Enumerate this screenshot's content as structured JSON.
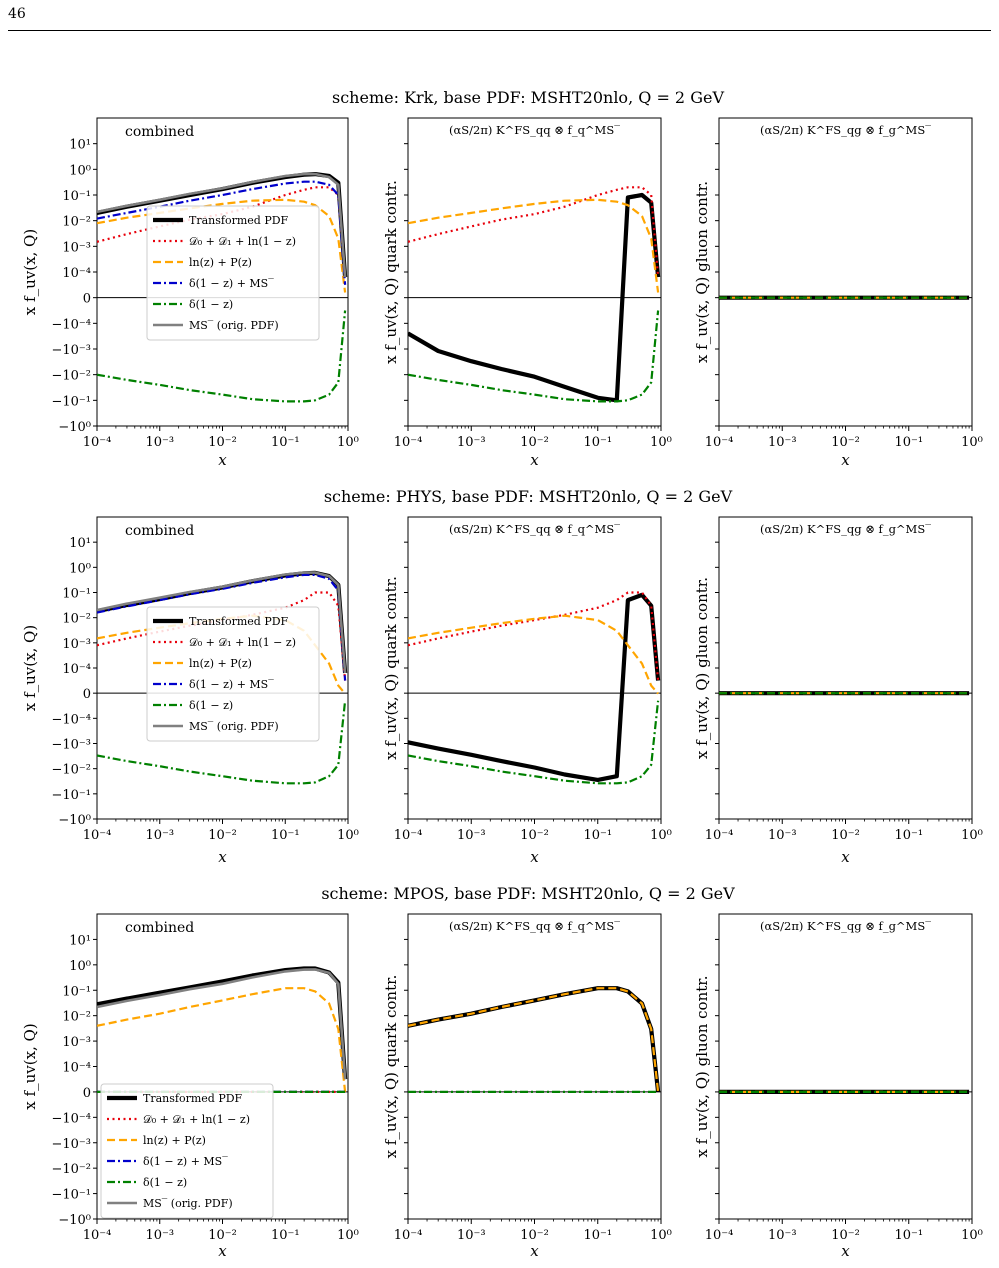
{
  "page": {
    "number": "46"
  },
  "legend_entries": [
    {
      "name": "Transformed PDF",
      "color": "#000000",
      "style": "solid-thick"
    },
    {
      "name": "𝒟₀ + 𝒟₁ + ln(1 − z)",
      "color": "#e8000b",
      "style": "dotted"
    },
    {
      "name": "ln(z) + P(z)",
      "color": "#ffa500",
      "style": "dashed"
    },
    {
      "name": "δ(1 − z) + MS‾",
      "color": "#0000cc",
      "style": "dashdot"
    },
    {
      "name": "δ(1 − z)",
      "color": "#008000",
      "style": "dashdot"
    },
    {
      "name": "MS‾ (orig. PDF)",
      "color": "#808080",
      "style": "solid"
    }
  ],
  "axes_text": {
    "xlabel": "x",
    "ylabel_combined": "x f_uv(x, Q)",
    "ylabel_quark": "x f_uv(x, Q) quark contr.",
    "ylabel_gluon": "x f_uv(x, Q) gluon contr.",
    "x_ticks": [
      "10⁻⁴",
      "10⁻³",
      "10⁻²",
      "10⁻¹",
      "10⁰"
    ],
    "y_ticks": [
      "10¹",
      "10⁰",
      "10⁻¹",
      "10⁻²",
      "10⁻³",
      "10⁻⁴",
      "0",
      "−10⁻⁴",
      "−10⁻³",
      "−10⁻²",
      "−10⁻¹",
      "−10⁰"
    ],
    "panel_title_combined": "combined",
    "panel_title_quark": "(αS/2π) K^FS_qq ⊗ f_q^MS‾",
    "panel_title_gluon": "(αS/2π) K^FS_qg ⊗ f_g^MS‾"
  },
  "chart_data": [
    {
      "type": "line",
      "title": "scheme: Krk, base PDF: MSHT20nlo, Q = 2 GeV",
      "y_scale": "symlog",
      "ylim": [
        -1,
        10
      ],
      "xlim": [
        0.0001,
        1
      ],
      "x_scale": "log",
      "x": [
        0.0001,
        0.0003,
        0.001,
        0.003,
        0.01,
        0.03,
        0.1,
        0.2,
        0.3,
        0.5,
        0.7,
        0.9
      ],
      "panels": [
        {
          "panel": "combined",
          "legend_position": "center-left",
          "series": [
            {
              "name": "Transformed PDF",
              "values": [
                0.02,
                0.035,
                0.06,
                0.1,
                0.17,
                0.3,
                0.5,
                0.62,
                0.65,
                0.55,
                0.3,
                8e-05
              ]
            },
            {
              "name": "𝒟₀ + 𝒟₁ + ln(1 − z)",
              "values": [
                0.0015,
                0.003,
                0.006,
                0.011,
                0.018,
                0.035,
                0.1,
                0.16,
                0.2,
                0.2,
                0.1,
                8e-05
              ]
            },
            {
              "name": "ln(z) + P(z)",
              "values": [
                0.008,
                0.013,
                0.02,
                0.03,
                0.045,
                0.06,
                0.065,
                0.055,
                0.04,
                0.015,
                0.002,
                2e-05
              ]
            },
            {
              "name": "δ(1 − z) + MS‾",
              "values": [
                0.012,
                0.02,
                0.035,
                0.06,
                0.1,
                0.17,
                0.28,
                0.33,
                0.33,
                0.25,
                0.1,
                5e-05
              ]
            },
            {
              "name": "δ(1 − z)",
              "values": [
                -0.01,
                -0.016,
                -0.025,
                -0.04,
                -0.06,
                -0.09,
                -0.11,
                -0.11,
                -0.1,
                -0.06,
                -0.02,
                -5e-05
              ]
            },
            {
              "name": "MS‾ (orig. PDF)",
              "values": [
                0.022,
                0.038,
                0.065,
                0.11,
                0.18,
                0.32,
                0.55,
                0.65,
                0.66,
                0.5,
                0.25,
                8e-05
              ]
            }
          ]
        },
        {
          "panel": "quark",
          "series": [
            {
              "name": "Transformed PDF",
              "values": [
                -0.00025,
                -0.0012,
                -0.003,
                -0.006,
                -0.012,
                -0.03,
                -0.08,
                -0.1,
                0.08,
                0.1,
                0.05,
                8e-05
              ]
            },
            {
              "name": "𝒟₀ + 𝒟₁ + ln(1 − z)",
              "values": [
                0.0015,
                0.003,
                0.006,
                0.011,
                0.018,
                0.035,
                0.1,
                0.16,
                0.2,
                0.2,
                0.1,
                8e-05
              ]
            },
            {
              "name": "ln(z) + P(z)",
              "values": [
                0.008,
                0.013,
                0.02,
                0.03,
                0.045,
                0.06,
                0.065,
                0.055,
                0.04,
                0.015,
                0.002,
                2e-05
              ]
            },
            {
              "name": "δ(1 − z)",
              "values": [
                -0.01,
                -0.016,
                -0.025,
                -0.04,
                -0.06,
                -0.09,
                -0.11,
                -0.11,
                -0.1,
                -0.06,
                -0.02,
                -5e-05
              ]
            }
          ]
        },
        {
          "panel": "gluon",
          "series": [
            {
              "name": "Transformed PDF",
              "values": [
                0,
                0,
                0,
                0,
                0,
                0,
                0,
                0,
                0,
                0,
                0,
                0
              ]
            },
            {
              "name": "ln(z) + P(z)",
              "values": [
                0,
                0,
                0,
                0,
                0,
                0,
                0,
                0,
                0,
                0,
                0,
                0
              ]
            },
            {
              "name": "δ(1 − z)",
              "values": [
                0,
                0,
                0,
                0,
                0,
                0,
                0,
                0,
                0,
                0,
                0,
                0
              ]
            }
          ]
        }
      ]
    },
    {
      "type": "line",
      "title": "scheme: PHYS, base PDF: MSHT20nlo, Q = 2 GeV",
      "y_scale": "symlog",
      "ylim": [
        -1,
        10
      ],
      "xlim": [
        0.0001,
        1
      ],
      "x_scale": "log",
      "x": [
        0.0001,
        0.0003,
        0.001,
        0.003,
        0.01,
        0.03,
        0.1,
        0.2,
        0.3,
        0.5,
        0.7,
        0.9
      ],
      "panels": [
        {
          "panel": "combined",
          "legend_position": "center",
          "series": [
            {
              "name": "Transformed PDF",
              "values": [
                0.018,
                0.032,
                0.055,
                0.095,
                0.16,
                0.28,
                0.48,
                0.58,
                0.6,
                0.45,
                0.2,
                8e-05
              ]
            },
            {
              "name": "𝒟₀ + 𝒟₁ + ln(1 − z)",
              "values": [
                0.0008,
                0.0015,
                0.0028,
                0.0048,
                0.008,
                0.013,
                0.025,
                0.05,
                0.1,
                0.1,
                0.03,
                5e-05
              ]
            },
            {
              "name": "ln(z) + P(z)",
              "values": [
                0.0015,
                0.0025,
                0.004,
                0.006,
                0.009,
                0.012,
                0.008,
                0.003,
                0.0008,
                0.00015,
                3e-05,
                -2e-06
              ]
            },
            {
              "name": "δ(1 − z) + MS‾",
              "values": [
                0.016,
                0.028,
                0.05,
                0.085,
                0.14,
                0.24,
                0.4,
                0.5,
                0.5,
                0.35,
                0.12,
                5e-05
              ]
            },
            {
              "name": "δ(1 − z)",
              "values": [
                -0.003,
                -0.005,
                -0.008,
                -0.013,
                -0.02,
                -0.03,
                -0.038,
                -0.038,
                -0.035,
                -0.02,
                -0.007,
                -3e-05
              ]
            },
            {
              "name": "MS‾ (orig. PDF)",
              "values": [
                0.02,
                0.036,
                0.062,
                0.105,
                0.17,
                0.3,
                0.52,
                0.62,
                0.62,
                0.45,
                0.2,
                8e-05
              ]
            }
          ]
        },
        {
          "panel": "quark",
          "series": [
            {
              "name": "Transformed PDF",
              "values": [
                -0.0009,
                -0.0016,
                -0.0028,
                -0.005,
                -0.009,
                -0.017,
                -0.028,
                -0.02,
                0.05,
                0.08,
                0.03,
                5e-05
              ]
            },
            {
              "name": "𝒟₀ + 𝒟₁ + ln(1 − z)",
              "values": [
                0.0008,
                0.0015,
                0.0028,
                0.0048,
                0.008,
                0.013,
                0.025,
                0.05,
                0.1,
                0.1,
                0.03,
                5e-05
              ]
            },
            {
              "name": "ln(z) + P(z)",
              "values": [
                0.0015,
                0.0025,
                0.004,
                0.006,
                0.009,
                0.012,
                0.008,
                0.003,
                0.0008,
                0.00015,
                3e-05,
                -2e-06
              ]
            },
            {
              "name": "δ(1 − z)",
              "values": [
                -0.003,
                -0.005,
                -0.008,
                -0.013,
                -0.02,
                -0.03,
                -0.038,
                -0.038,
                -0.035,
                -0.02,
                -0.007,
                -3e-05
              ]
            }
          ]
        },
        {
          "panel": "gluon",
          "series": [
            {
              "name": "Transformed PDF",
              "values": [
                0,
                0,
                0,
                0,
                0,
                0,
                0,
                0,
                0,
                0,
                0,
                0
              ]
            },
            {
              "name": "ln(z) + P(z)",
              "values": [
                0,
                0,
                0,
                0,
                0,
                0,
                0,
                0,
                0,
                0,
                0,
                0
              ]
            },
            {
              "name": "δ(1 − z)",
              "values": [
                0,
                0,
                0,
                0,
                0,
                0,
                0,
                0,
                0,
                0,
                0,
                0
              ]
            }
          ]
        }
      ]
    },
    {
      "type": "line",
      "title": "scheme: MPOS, base PDF: MSHT20nlo, Q = 2 GeV",
      "y_scale": "symlog",
      "ylim": [
        -1,
        10
      ],
      "xlim": [
        0.0001,
        1
      ],
      "x_scale": "log",
      "x": [
        0.0001,
        0.0003,
        0.001,
        0.003,
        0.01,
        0.03,
        0.1,
        0.2,
        0.3,
        0.5,
        0.7,
        0.9
      ],
      "panels": [
        {
          "panel": "combined",
          "legend_position": "lower-left",
          "series": [
            {
              "name": "Transformed PDF",
              "values": [
                0.028,
                0.047,
                0.08,
                0.13,
                0.22,
                0.38,
                0.62,
                0.72,
                0.72,
                0.5,
                0.2,
                5e-05
              ]
            },
            {
              "name": "𝒟₀ + 𝒟₁ + ln(1 − z)",
              "values": [
                0,
                0,
                0,
                0,
                0,
                0,
                0,
                0,
                0,
                0,
                0,
                0
              ]
            },
            {
              "name": "ln(z) + P(z)",
              "values": [
                0.004,
                0.007,
                0.012,
                0.022,
                0.04,
                0.07,
                0.12,
                0.12,
                0.09,
                0.03,
                0.003,
                0
              ]
            },
            {
              "name": "δ(1 − z) + MS‾",
              "values": [
                0,
                0,
                0,
                0,
                0,
                0,
                0,
                0,
                0,
                0,
                0,
                0
              ]
            },
            {
              "name": "δ(1 − z)",
              "values": [
                0,
                0,
                0,
                0,
                0,
                0,
                0,
                0,
                0,
                0,
                0,
                0
              ]
            },
            {
              "name": "MS‾ (orig. PDF)",
              "values": [
                0.022,
                0.038,
                0.065,
                0.11,
                0.18,
                0.32,
                0.55,
                0.65,
                0.66,
                0.48,
                0.18,
                5e-05
              ]
            }
          ]
        },
        {
          "panel": "quark",
          "series": [
            {
              "name": "Transformed PDF",
              "values": [
                0.004,
                0.007,
                0.012,
                0.022,
                0.04,
                0.07,
                0.12,
                0.12,
                0.09,
                0.03,
                0.003,
                0
              ]
            },
            {
              "name": "ln(z) + P(z)",
              "values": [
                0.004,
                0.007,
                0.012,
                0.022,
                0.04,
                0.07,
                0.12,
                0.12,
                0.09,
                0.03,
                0.003,
                0
              ]
            },
            {
              "name": "δ(1 − z)",
              "values": [
                0,
                0,
                0,
                0,
                0,
                0,
                0,
                0,
                0,
                0,
                0,
                0
              ]
            }
          ]
        },
        {
          "panel": "gluon",
          "series": [
            {
              "name": "Transformed PDF",
              "values": [
                0,
                0,
                0,
                0,
                0,
                0,
                0,
                0,
                0,
                0,
                0,
                0
              ]
            },
            {
              "name": "ln(z) + P(z)",
              "values": [
                0,
                0,
                0,
                0,
                0,
                0,
                0,
                0,
                0,
                0,
                0,
                0
              ]
            },
            {
              "name": "δ(1 − z)",
              "values": [
                0,
                0,
                0,
                0,
                0,
                0,
                0,
                0,
                0,
                0,
                0,
                0
              ]
            }
          ]
        }
      ]
    }
  ]
}
